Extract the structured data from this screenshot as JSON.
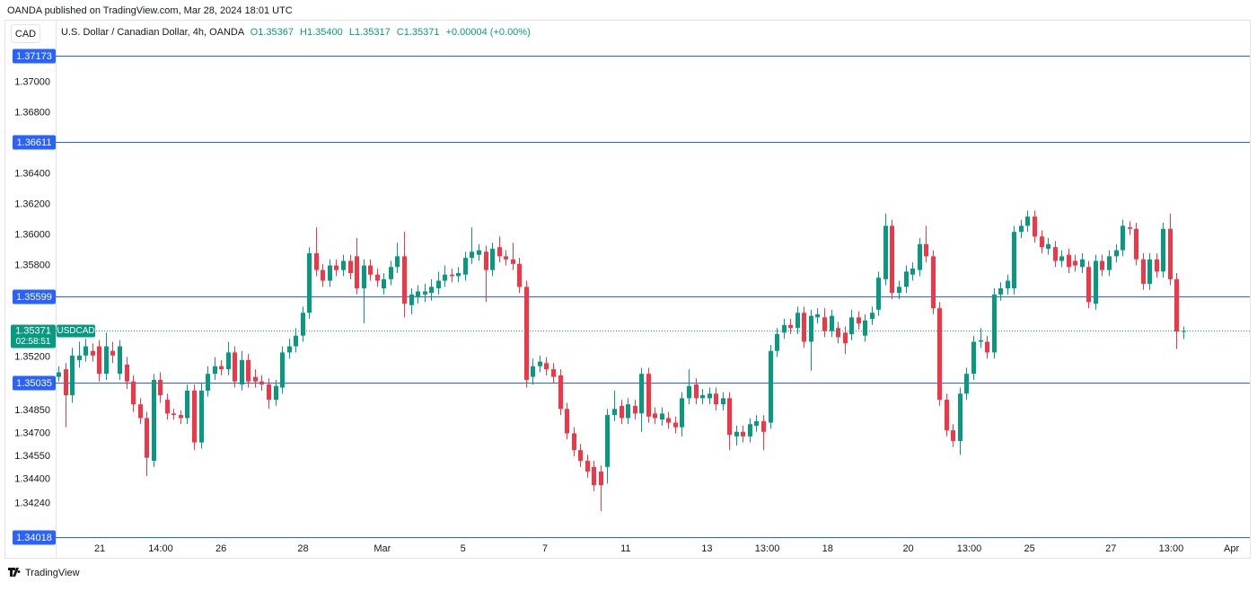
{
  "chart_data": {
    "type": "candlestick",
    "source": "OANDA published on TradingView.com, Mar 28, 2024 18:01 UTC",
    "currency": "CAD",
    "title": "U.S. Dollar / Canadian Dollar, 4h, OANDA",
    "ohlc_legend": [
      "O1.35367",
      "H1.35400",
      "L1.35317",
      "C1.35371",
      "+0.00004 (+0.00%)"
    ],
    "symbol": "USDCAD",
    "countdown": "02:58:51",
    "last_price": 1.35371,
    "hlines": [
      1.37173,
      1.36611,
      1.35599,
      1.35035,
      1.34018
    ],
    "branding": "TradingView",
    "up_color": "#089981",
    "down_color": "#f23645",
    "hline_color": "#2962ff",
    "grid": false,
    "ylim": [
      1.3402,
      1.3741
    ],
    "yticks": [
      {
        "value": 1.37,
        "label": "1.37000"
      },
      {
        "value": 1.368,
        "label": "1.36800"
      },
      {
        "value": 1.364,
        "label": "1.36400"
      },
      {
        "value": 1.362,
        "label": "1.36200"
      },
      {
        "value": 1.36,
        "label": "1.36000"
      },
      {
        "value": 1.358,
        "label": "1.35800"
      },
      {
        "value": 1.352,
        "label": "1.35200"
      },
      {
        "value": 1.3485,
        "label": "1.34850"
      },
      {
        "value": 1.347,
        "label": "1.34700"
      },
      {
        "value": 1.3455,
        "label": "1.34550"
      },
      {
        "value": 1.344,
        "label": "1.34400"
      },
      {
        "value": 1.3424,
        "label": "1.34240"
      }
    ],
    "xlim": [
      -0.4,
      175.8
    ],
    "xticks": [
      {
        "value": 6.1,
        "label": "21"
      },
      {
        "value": 15.1,
        "label": "14:00"
      },
      {
        "value": 24.0,
        "label": "26"
      },
      {
        "value": 36.1,
        "label": "28"
      },
      {
        "value": 47.8,
        "label": "Mar"
      },
      {
        "value": 59.7,
        "label": "5"
      },
      {
        "value": 71.8,
        "label": "7"
      },
      {
        "value": 83.7,
        "label": "11"
      },
      {
        "value": 95.7,
        "label": "13"
      },
      {
        "value": 104.6,
        "label": "13:00"
      },
      {
        "value": 113.5,
        "label": "18"
      },
      {
        "value": 125.4,
        "label": "20"
      },
      {
        "value": 134.4,
        "label": "13:00"
      },
      {
        "value": 143.3,
        "label": "25"
      },
      {
        "value": 155.3,
        "label": "27"
      },
      {
        "value": 164.2,
        "label": "13:00"
      },
      {
        "value": 173.1,
        "label": "Apr"
      }
    ],
    "open": [
      1.3507,
      1.3512,
      1.3495,
      1.3518,
      1.3521,
      1.3524,
      1.3527,
      1.3509,
      1.3524,
      1.3509,
      1.3515,
      1.3504,
      1.3489,
      1.348,
      1.3452,
      1.3505,
      1.3492,
      1.3483,
      1.3482,
      1.348,
      1.3498,
      1.3464,
      1.3498,
      1.3509,
      1.3514,
      1.3512,
      1.3523,
      1.3502,
      1.3518,
      1.3507,
      1.3504,
      1.3502,
      1.3492,
      1.35,
      1.3523,
      1.3527,
      1.3534,
      1.3549,
      1.3588,
      1.3577,
      1.357,
      1.358,
      1.3577,
      1.3583,
      1.3586,
      1.3565,
      1.358,
      1.3574,
      1.3565,
      1.3571,
      1.3579,
      1.3586,
      1.3554,
      1.3559,
      1.3561,
      1.3562,
      1.3565,
      1.357,
      1.3574,
      1.3573,
      1.3574,
      1.3585,
      1.3587,
      1.3589,
      1.3577,
      1.3592,
      1.3586,
      1.3584,
      1.3581,
      1.3566,
      1.3507,
      1.3514,
      1.3516,
      1.3512,
      1.3508,
      1.3486,
      1.347,
      1.3459,
      1.3452,
      1.3448,
      1.3445,
      1.3448,
      1.3482,
      1.3488,
      1.348,
      1.3488,
      1.3483,
      1.3509,
      1.3483,
      1.3479,
      1.348,
      1.3477,
      1.3474,
      1.3493,
      1.3502,
      1.3493,
      1.3493,
      1.3496,
      1.3489,
      1.3493,
      1.3468,
      1.3471,
      1.3468,
      1.3475,
      1.3478,
      1.3477,
      1.3524,
      1.3536,
      1.3541,
      1.3539,
      1.3549,
      1.353,
      1.3546,
      1.3546,
      1.3537,
      1.3539,
      1.3536,
      1.3535,
      1.3546,
      1.3534,
      1.3545,
      1.3551,
      1.3571,
      1.3606,
      1.3562,
      1.3566,
      1.3574,
      1.3577,
      1.3594,
      1.3586,
      1.3552,
      1.3492,
      1.3472,
      1.3465,
      1.3496,
      1.3509,
      1.353,
      1.353,
      1.3523,
      1.3561,
      1.3565,
      1.3565,
      1.3602,
      1.3606,
      1.3612,
      1.3599,
      1.3591,
      1.3592,
      1.3583,
      1.3587,
      1.3583,
      1.3579,
      1.3579,
      1.3555,
      1.3583,
      1.3577,
      1.3586,
      1.359,
      1.3605,
      1.3604,
      1.3584,
      1.3568,
      1.3584,
      1.3576,
      1.3604,
      1.3571,
      1.35367
    ],
    "high": [
      1.3514,
      1.3516,
      1.3526,
      1.353,
      1.3532,
      1.3529,
      1.3531,
      1.3536,
      1.353,
      1.3531,
      1.352,
      1.3508,
      1.3493,
      1.3484,
      1.3509,
      1.351,
      1.3496,
      1.3486,
      1.3485,
      1.3502,
      1.3502,
      1.3503,
      1.3514,
      1.352,
      1.3518,
      1.353,
      1.3527,
      1.3524,
      1.3522,
      1.3512,
      1.3508,
      1.3506,
      1.3505,
      1.3527,
      1.3532,
      1.3539,
      1.3553,
      1.3592,
      1.3605,
      1.3581,
      1.3584,
      1.3584,
      1.3587,
      1.3587,
      1.3598,
      1.3584,
      1.3584,
      1.3578,
      1.3575,
      1.3583,
      1.3595,
      1.3602,
      1.3565,
      1.3567,
      1.3568,
      1.3571,
      1.3576,
      1.358,
      1.3578,
      1.3579,
      1.3589,
      1.3605,
      1.3594,
      1.3593,
      1.3595,
      1.3599,
      1.359,
      1.3595,
      1.3585,
      1.357,
      1.3519,
      1.3521,
      1.352,
      1.3516,
      1.3512,
      1.349,
      1.3474,
      1.3463,
      1.3456,
      1.3452,
      1.3449,
      1.3486,
      1.3498,
      1.3492,
      1.3493,
      1.3492,
      1.3513,
      1.3513,
      1.3487,
      1.3487,
      1.3484,
      1.3481,
      1.3497,
      1.3512,
      1.3506,
      1.3499,
      1.35,
      1.35,
      1.3497,
      1.3497,
      1.3475,
      1.3475,
      1.348,
      1.3482,
      1.3482,
      1.3528,
      1.3539,
      1.3545,
      1.3545,
      1.3553,
      1.3553,
      1.3551,
      1.3552,
      1.3552,
      1.3551,
      1.3543,
      1.354,
      1.3551,
      1.355,
      1.3548,
      1.3553,
      1.3576,
      1.3614,
      1.361,
      1.357,
      1.358,
      1.3582,
      1.3598,
      1.3606,
      1.359,
      1.3556,
      1.3496,
      1.3476,
      1.35,
      1.3513,
      1.3534,
      1.3539,
      1.3534,
      1.3565,
      1.3569,
      1.3574,
      1.3606,
      1.361,
      1.3616,
      1.3616,
      1.3603,
      1.3598,
      1.3596,
      1.359,
      1.3591,
      1.3587,
      1.3588,
      1.3583,
      1.3587,
      1.3587,
      1.359,
      1.3594,
      1.361,
      1.3609,
      1.3608,
      1.3588,
      1.3588,
      1.3588,
      1.3608,
      1.3614,
      1.3575,
      1.354
    ],
    "low": [
      1.3504,
      1.3474,
      1.349,
      1.3513,
      1.3517,
      1.3517,
      1.3504,
      1.3505,
      1.3516,
      1.3505,
      1.3499,
      1.3484,
      1.3476,
      1.3442,
      1.3448,
      1.349,
      1.3479,
      1.3479,
      1.3476,
      1.3476,
      1.3459,
      1.346,
      1.3494,
      1.3505,
      1.3508,
      1.3508,
      1.35,
      1.3498,
      1.35,
      1.35,
      1.3498,
      1.3486,
      1.3488,
      1.3496,
      1.3519,
      1.3523,
      1.353,
      1.3545,
      1.3573,
      1.3566,
      1.3566,
      1.3573,
      1.3573,
      1.3571,
      1.3561,
      1.3542,
      1.357,
      1.3566,
      1.3561,
      1.3567,
      1.3575,
      1.3546,
      1.3548,
      1.3555,
      1.3556,
      1.3557,
      1.3561,
      1.3566,
      1.3569,
      1.3569,
      1.357,
      1.3581,
      1.3583,
      1.3556,
      1.3573,
      1.3582,
      1.358,
      1.3577,
      1.3562,
      1.35,
      1.3502,
      1.351,
      1.3508,
      1.3503,
      1.3482,
      1.3466,
      1.3455,
      1.3448,
      1.3441,
      1.3432,
      1.3419,
      1.3437,
      1.3478,
      1.3476,
      1.3476,
      1.3479,
      1.3471,
      1.3477,
      1.3476,
      1.3475,
      1.3473,
      1.347,
      1.3468,
      1.3489,
      1.3489,
      1.3489,
      1.3489,
      1.3485,
      1.3485,
      1.3459,
      1.3462,
      1.3464,
      1.3464,
      1.3471,
      1.3459,
      1.3473,
      1.352,
      1.3532,
      1.3535,
      1.3535,
      1.3526,
      1.3511,
      1.3542,
      1.3533,
      1.3533,
      1.3529,
      1.3522,
      1.3531,
      1.3538,
      1.353,
      1.3541,
      1.3547,
      1.3567,
      1.3558,
      1.3558,
      1.3562,
      1.357,
      1.3573,
      1.3582,
      1.3548,
      1.3488,
      1.3468,
      1.3461,
      1.3456,
      1.3492,
      1.3505,
      1.3526,
      1.3519,
      1.3519,
      1.3557,
      1.3561,
      1.3561,
      1.3598,
      1.3602,
      1.3595,
      1.3588,
      1.3587,
      1.3579,
      1.3579,
      1.3575,
      1.3576,
      1.3575,
      1.3552,
      1.3551,
      1.3573,
      1.3573,
      1.3582,
      1.3586,
      1.36,
      1.358,
      1.3564,
      1.3564,
      1.3572,
      1.3572,
      1.3567,
      1.35253,
      1.35317
    ],
    "close": [
      1.351,
      1.3495,
      1.3521,
      1.3521,
      1.3527,
      1.3521,
      1.3509,
      1.3527,
      1.3521,
      1.3527,
      1.3504,
      1.3489,
      1.348,
      1.3454,
      1.3505,
      1.3495,
      1.3483,
      1.3482,
      1.348,
      1.3498,
      1.3464,
      1.3498,
      1.3509,
      1.3514,
      1.3512,
      1.3523,
      1.3504,
      1.3518,
      1.3504,
      1.3504,
      1.3502,
      1.3492,
      1.3501,
      1.3523,
      1.3527,
      1.3534,
      1.3549,
      1.3588,
      1.3577,
      1.357,
      1.358,
      1.3577,
      1.3583,
      1.3575,
      1.3565,
      1.358,
      1.3574,
      1.357,
      1.3571,
      1.3579,
      1.3586,
      1.3555,
      1.3561,
      1.3563,
      1.3563,
      1.3566,
      1.357,
      1.3574,
      1.3573,
      1.3575,
      1.3585,
      1.3589,
      1.359,
      1.3577,
      1.3591,
      1.3586,
      1.3584,
      1.3581,
      1.3566,
      1.3505,
      1.3514,
      1.3517,
      1.3512,
      1.3507,
      1.3486,
      1.347,
      1.3459,
      1.3452,
      1.3445,
      1.3436,
      1.3436,
      1.3482,
      1.3486,
      1.348,
      1.3489,
      1.3483,
      1.3509,
      1.3481,
      1.348,
      1.3483,
      1.3477,
      1.3474,
      1.3493,
      1.3501,
      1.3493,
      1.3495,
      1.3496,
      1.3489,
      1.3493,
      1.3469,
      1.3471,
      1.3468,
      1.3476,
      1.3478,
      1.3471,
      1.3524,
      1.3535,
      1.3541,
      1.3539,
      1.3549,
      1.353,
      1.3547,
      1.3548,
      1.3537,
      1.3547,
      1.3533,
      1.3529,
      1.3546,
      1.3542,
      1.3544,
      1.3549,
      1.3572,
      1.3606,
      1.3562,
      1.3566,
      1.3576,
      1.3578,
      1.3594,
      1.3586,
      1.3552,
      1.3492,
      1.3472,
      1.3465,
      1.3496,
      1.3509,
      1.353,
      1.3531,
      1.3523,
      1.3561,
      1.3565,
      1.357,
      1.3602,
      1.3606,
      1.3612,
      1.3599,
      1.3592,
      1.3594,
      1.3583,
      1.3586,
      1.3579,
      1.358,
      1.3584,
      1.3556,
      1.3583,
      1.3577,
      1.3586,
      1.359,
      1.3606,
      1.3604,
      1.3584,
      1.3568,
      1.3584,
      1.3576,
      1.3604,
      1.3571,
      1.35367,
      1.35371
    ]
  }
}
